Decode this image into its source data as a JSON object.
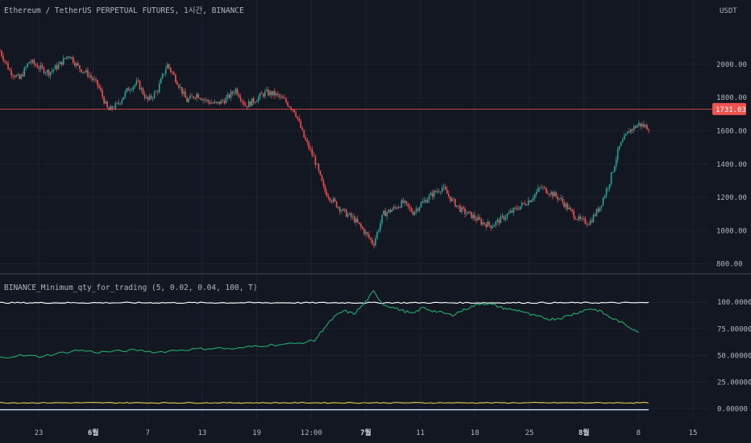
{
  "colors": {
    "background": "#131722",
    "grid": "#1e222d",
    "axis_text": "#b2b5be",
    "up_candle": "#26a69a",
    "down_candle": "#ef5350",
    "price_line": "#ef5350",
    "price_badge": "#ef5350",
    "series_white": "#ffffff",
    "series_green": "#22ab6e",
    "series_yellow": "#e7c94c",
    "series_blue": "#c9d9ff",
    "separator": "#2a2e39"
  },
  "chart_data": [
    {
      "type": "candlestick",
      "title": "Ethereum / TetherUS PERPETUAL FUTURES, 1시간, BINANCE",
      "yunit": "USDT",
      "ylim": [
        750,
        2280
      ],
      "yticks": [
        800,
        1000,
        1200,
        1400,
        1600,
        1800,
        2000
      ],
      "ytick_labels": [
        "800.00",
        "1000.00",
        "1200.00",
        "1400.00",
        "1600.00",
        "1800.00",
        "2000.00"
      ],
      "last_price": 1731.03,
      "last_price_label": "1731.03",
      "x_range": [
        0,
        66
      ],
      "close_path": [
        [
          0,
          2080
        ],
        [
          1,
          1960
        ],
        [
          2,
          1910
        ],
        [
          3,
          2020
        ],
        [
          4,
          1980
        ],
        [
          5,
          1950
        ],
        [
          6,
          1995
        ],
        [
          7,
          2060
        ],
        [
          8,
          1980
        ],
        [
          9,
          1940
        ],
        [
          10,
          1870
        ],
        [
          11,
          1720
        ],
        [
          12,
          1760
        ],
        [
          13,
          1850
        ],
        [
          14,
          1890
        ],
        [
          15,
          1780
        ],
        [
          16,
          1840
        ],
        [
          17,
          2000
        ],
        [
          18,
          1900
        ],
        [
          19,
          1780
        ],
        [
          20,
          1820
        ],
        [
          21,
          1780
        ],
        [
          22,
          1760
        ],
        [
          23,
          1790
        ],
        [
          24,
          1850
        ],
        [
          25,
          1750
        ],
        [
          26,
          1790
        ],
        [
          27,
          1830
        ],
        [
          28,
          1820
        ],
        [
          29,
          1780
        ],
        [
          30,
          1720
        ],
        [
          31,
          1550
        ],
        [
          32,
          1430
        ],
        [
          33,
          1240
        ],
        [
          34,
          1170
        ],
        [
          35,
          1110
        ],
        [
          36,
          1070
        ],
        [
          37,
          1000
        ],
        [
          38,
          920
        ],
        [
          39,
          1100
        ],
        [
          40,
          1130
        ],
        [
          41,
          1170
        ],
        [
          42,
          1110
        ],
        [
          43,
          1170
        ],
        [
          44,
          1220
        ],
        [
          45,
          1260
        ],
        [
          46,
          1180
        ],
        [
          47,
          1120
        ],
        [
          48,
          1090
        ],
        [
          49,
          1050
        ],
        [
          50,
          1030
        ],
        [
          51,
          1070
        ],
        [
          52,
          1110
        ],
        [
          53,
          1150
        ],
        [
          54,
          1190
        ],
        [
          55,
          1260
        ],
        [
          56,
          1230
        ],
        [
          57,
          1190
        ],
        [
          58,
          1120
        ],
        [
          59,
          1060
        ],
        [
          60,
          1050
        ],
        [
          61,
          1140
        ],
        [
          62,
          1290
        ],
        [
          63,
          1500
        ],
        [
          64,
          1600
        ],
        [
          65,
          1640
        ],
        [
          66,
          1620
        ]
      ]
    },
    {
      "type": "line",
      "title": "BINANCE_Minimum_qty_for_trading (5, 0.02, 0.04, 100, T)",
      "ylim": [
        -2,
        110
      ],
      "yticks": [
        0,
        25,
        50,
        75,
        100
      ],
      "ytick_labels": [
        "0.00000",
        "25.00000",
        "50.00000",
        "75.00000",
        "100.00000"
      ],
      "x_range": [
        0,
        66
      ],
      "series": [
        {
          "color": "#ffffff",
          "points": [
            [
              0,
              99.5
            ],
            [
              66,
              99.5
            ]
          ]
        },
        {
          "color": "#22ab6e",
          "points": [
            [
              0,
              48
            ],
            [
              2,
              50
            ],
            [
              4,
              49
            ],
            [
              6,
              52
            ],
            [
              8,
              55
            ],
            [
              10,
              53
            ],
            [
              12,
              54
            ],
            [
              14,
              55
            ],
            [
              16,
              53
            ],
            [
              18,
              55
            ],
            [
              20,
              56
            ],
            [
              22,
              57
            ],
            [
              24,
              56
            ],
            [
              26,
              59
            ],
            [
              28,
              60
            ],
            [
              30,
              61
            ],
            [
              32,
              64
            ],
            [
              33,
              76
            ],
            [
              34,
              86
            ],
            [
              35,
              92
            ],
            [
              36,
              89
            ],
            [
              37,
              98
            ],
            [
              38,
              110
            ],
            [
              39,
              98
            ],
            [
              40,
              95
            ],
            [
              41,
              92
            ],
            [
              42,
              89
            ],
            [
              43,
              95
            ],
            [
              44,
              92
            ],
            [
              45,
              90
            ],
            [
              46,
              88
            ],
            [
              47,
              92
            ],
            [
              48,
              96
            ],
            [
              49,
              99
            ],
            [
              50,
              98
            ],
            [
              51,
              95
            ],
            [
              52,
              93
            ],
            [
              53,
              92
            ],
            [
              54,
              88
            ],
            [
              55,
              86
            ],
            [
              56,
              84
            ],
            [
              57,
              85
            ],
            [
              58,
              88
            ],
            [
              59,
              91
            ],
            [
              60,
              94
            ],
            [
              61,
              92
            ],
            [
              62,
              86
            ],
            [
              63,
              82
            ],
            [
              64,
              77
            ],
            [
              65,
              72
            ]
          ]
        },
        {
          "color": "#e7c94c",
          "points": [
            [
              0,
              5.5
            ],
            [
              66,
              5.5
            ]
          ]
        },
        {
          "color": "#c9d9ff",
          "points": [
            [
              0,
              -1
            ],
            [
              66,
              -1
            ]
          ]
        }
      ]
    }
  ],
  "xaxis": {
    "ticks": [
      {
        "label": "23",
        "bold": false
      },
      {
        "label": "6월",
        "bold": true
      },
      {
        "label": "7",
        "bold": false
      },
      {
        "label": "13",
        "bold": false
      },
      {
        "label": "19",
        "bold": false
      },
      {
        "label": "12:00",
        "bold": false
      },
      {
        "label": "7월",
        "bold": true
      },
      {
        "label": "11",
        "bold": false
      },
      {
        "label": "18",
        "bold": false
      },
      {
        "label": "25",
        "bold": false
      },
      {
        "label": "8월",
        "bold": true
      },
      {
        "label": "8",
        "bold": false
      },
      {
        "label": "15",
        "bold": false
      }
    ]
  }
}
